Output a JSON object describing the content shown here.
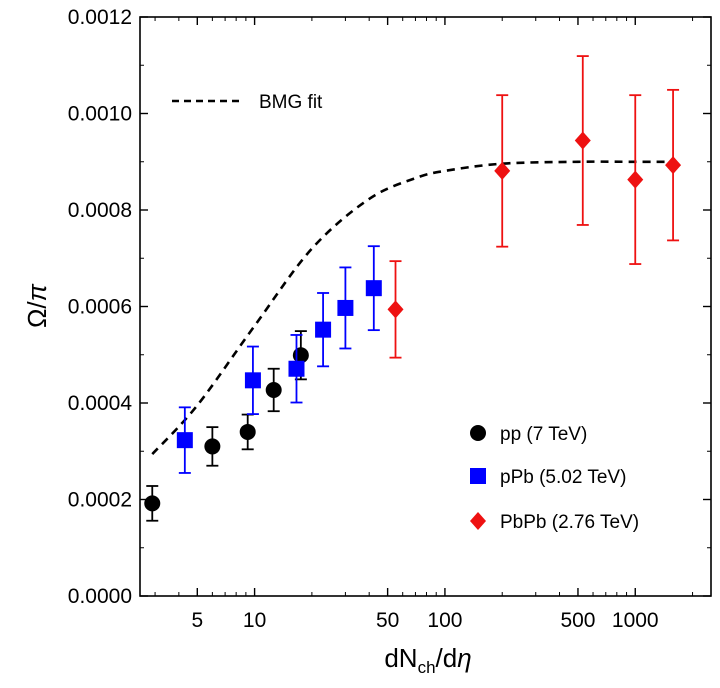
{
  "chart_data": {
    "type": "scatter",
    "title": "",
    "xlabel": {
      "main": "dN",
      "sub": "ch",
      "rest": "/d",
      "greek": "η"
    },
    "ylabel": {
      "main": "Ω/",
      "greek": "π"
    },
    "xscale": "log",
    "xlim": [
      2.5,
      2500
    ],
    "ylim": [
      0,
      0.0012
    ],
    "xticks": [
      {
        "value": 5,
        "label": "5"
      },
      {
        "value": 10,
        "label": "10"
      },
      {
        "value": 50,
        "label": "50"
      },
      {
        "value": 100,
        "label": "100"
      },
      {
        "value": 500,
        "label": "500"
      },
      {
        "value": 1000,
        "label": "1000"
      }
    ],
    "yticks": [
      {
        "value": 0,
        "label": "0.0000"
      },
      {
        "value": 0.0002,
        "label": "0.0002"
      },
      {
        "value": 0.0004,
        "label": "0.0004"
      },
      {
        "value": 0.0006,
        "label": "0.0006"
      },
      {
        "value": 0.0008,
        "label": "0.0008"
      },
      {
        "value": 0.001,
        "label": "0.0010"
      },
      {
        "value": 0.0012,
        "label": "0.0012"
      }
    ],
    "series": [
      {
        "name": "pp (7 TeV)",
        "marker": "circle",
        "color": "#000000",
        "points": [
          {
            "x": 2.9,
            "y": 0.000192,
            "err": 3.6e-05
          },
          {
            "x": 6.0,
            "y": 0.00031,
            "err": 4e-05
          },
          {
            "x": 9.2,
            "y": 0.00034,
            "err": 3.6e-05
          },
          {
            "x": 12.6,
            "y": 0.000427,
            "err": 4.4e-05
          },
          {
            "x": 17.5,
            "y": 0.000499,
            "err": 5e-05
          }
        ]
      },
      {
        "name": "pPb (5.02 TeV)",
        "marker": "square",
        "color": "#0000ff",
        "points": [
          {
            "x": 4.3,
            "y": 0.000323,
            "err": 6.8e-05
          },
          {
            "x": 9.8,
            "y": 0.000447,
            "err": 7e-05
          },
          {
            "x": 16.6,
            "y": 0.000471,
            "err": 7e-05
          },
          {
            "x": 22.9,
            "y": 0.000552,
            "err": 7.6e-05
          },
          {
            "x": 30.0,
            "y": 0.000597,
            "err": 8.4e-05
          },
          {
            "x": 42.3,
            "y": 0.000638,
            "err": 8.7e-05
          }
        ]
      },
      {
        "name": "PbPb (2.76 TeV)",
        "marker": "diamond",
        "color": "#ee1111",
        "points": [
          {
            "x": 55,
            "y": 0.000594,
            "err": 0.0001
          },
          {
            "x": 200,
            "y": 0.000881,
            "err": 0.000157
          },
          {
            "x": 530,
            "y": 0.000944,
            "err": 0.000175
          },
          {
            "x": 1000,
            "y": 0.000863,
            "err": 0.000175
          },
          {
            "x": 1580,
            "y": 0.000893,
            "err": 0.000156
          }
        ]
      }
    ],
    "fit": {
      "name": "BMG fit",
      "style": "dashed",
      "color": "#000000",
      "points": [
        [
          2.9,
          0.000294
        ],
        [
          5,
          0.000395
        ],
        [
          10,
          0.00056
        ],
        [
          20,
          0.00072
        ],
        [
          40,
          0.000823
        ],
        [
          70,
          0.000866
        ],
        [
          100,
          0.000881
        ],
        [
          200,
          0.000896
        ],
        [
          500,
          0.0009
        ],
        [
          1000,
          0.0009
        ],
        [
          1600,
          0.0009
        ]
      ]
    },
    "legend": {
      "placement": "bottom-right",
      "fit_placement": "top-left"
    }
  }
}
